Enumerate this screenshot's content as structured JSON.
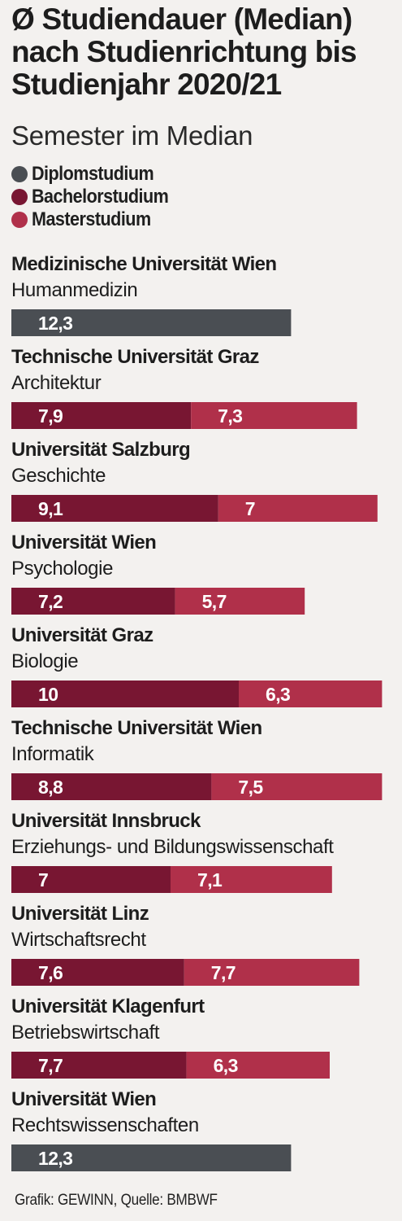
{
  "chart_data": {
    "type": "bar",
    "orientation": "horizontal",
    "stacked": true,
    "title": "Ø Studiendauer (Median) nach Studienrichtung bis Studienjahr 2020/21",
    "subtitle": "Semester im Median",
    "legend_position": "top-left",
    "grid": false,
    "xlim": [
      0,
      17
    ],
    "series": [
      {
        "name": "Diplomstudium",
        "color": "#4a4e53"
      },
      {
        "name": "Bachelorstudium",
        "color": "#781632"
      },
      {
        "name": "Masterstudium",
        "color": "#b0304a"
      }
    ],
    "categories": [
      {
        "university": "Medizinische Universität Wien",
        "program": "Humanmedizin",
        "diplom": 12.3,
        "diplom_label": "12,3"
      },
      {
        "university": "Technische Universität Graz",
        "program": "Architektur",
        "bachelor": 7.9,
        "bachelor_label": "7,9",
        "master": 7.3,
        "master_label": "7,3"
      },
      {
        "university": "Universität Salzburg",
        "program": "Geschichte",
        "bachelor": 9.1,
        "bachelor_label": "9,1",
        "master": 7,
        "master_label": "7"
      },
      {
        "university": "Universität Wien",
        "program": "Psychologie",
        "bachelor": 7.2,
        "bachelor_label": "7,2",
        "master": 5.7,
        "master_label": "5,7"
      },
      {
        "university": "Universität Graz",
        "program": "Biologie",
        "bachelor": 10,
        "bachelor_label": "10",
        "master": 6.3,
        "master_label": "6,3"
      },
      {
        "university": "Technische Universität Wien",
        "program": "Informatik",
        "bachelor": 8.8,
        "bachelor_label": "8,8",
        "master": 7.5,
        "master_label": "7,5"
      },
      {
        "university": "Universität Innsbruck",
        "program": "Erziehungs- und Bildungswissenschaft",
        "bachelor": 7,
        "bachelor_label": "7",
        "master": 7.1,
        "master_label": "7,1"
      },
      {
        "university": "Universität Linz",
        "program": "Wirtschaftsrecht",
        "bachelor": 7.6,
        "bachelor_label": "7,6",
        "master": 7.7,
        "master_label": "7,7"
      },
      {
        "university": "Universität Klagenfurt",
        "program": "Betriebswirtschaft",
        "bachelor": 7.7,
        "bachelor_label": "7,7",
        "master": 6.3,
        "master_label": "6,3"
      },
      {
        "university": "Universität Wien",
        "program": "Rechtswissenschaften",
        "diplom": 12.3,
        "diplom_label": "12,3"
      }
    ]
  },
  "source": "Grafik: GEWINN, Quelle: BMBWF"
}
